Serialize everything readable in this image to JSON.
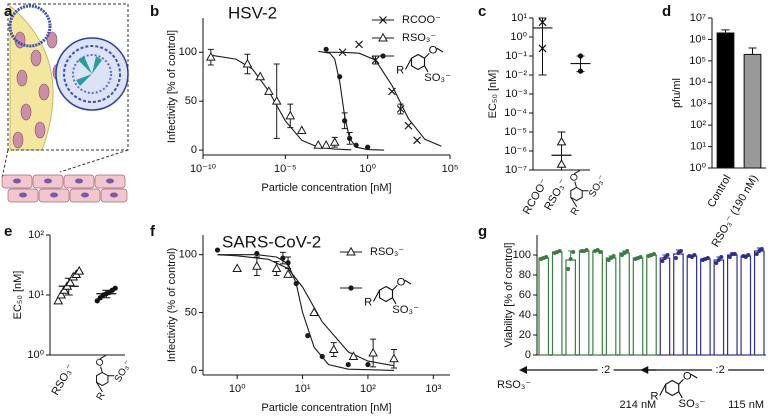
{
  "panel_letters": [
    "a",
    "b",
    "c",
    "d",
    "e",
    "f",
    "g"
  ],
  "structure": {
    "r": "R",
    "o": "O",
    "so3": "SO₃⁻"
  },
  "chart_data": [
    {
      "type": "line",
      "title": "HSV-2",
      "x_label": "Particle concentration [nM]",
      "y_label": "Infectivity [% of control]",
      "x_log": true,
      "xlim": [
        1e-10,
        100000.0
      ],
      "xticks": [
        {
          "value": 1e-10,
          "label": "10⁻¹⁰"
        },
        {
          "value": 1e-05,
          "label": "10⁻⁵"
        },
        {
          "value": 1,
          "label": "10⁰"
        },
        {
          "value": 100000.0,
          "label": "10⁵"
        }
      ],
      "ylim": [
        -5,
        135
      ],
      "yticks": [
        0,
        50,
        100
      ],
      "legend": "upper right",
      "series": [
        {
          "name": "RCOO⁻",
          "marker": "x",
          "color": "#1a1a1a",
          "x": [
            0.03,
            0.3,
            3,
            30,
            100,
            300,
            1000
          ],
          "values": [
            100,
            108,
            92,
            60,
            42,
            25,
            10
          ],
          "errors": [
            null,
            null,
            4,
            null,
            5,
            null,
            null
          ],
          "fit_x": [
            0.003,
            0.03,
            0.3,
            3,
            30,
            300,
            3000,
            30000
          ],
          "fit_values": [
            100,
            100,
            99,
            92,
            66,
            32,
            11,
            4
          ]
        },
        {
          "name": "RSO₃⁻",
          "marker": "triangle",
          "color": "#1a1a1a",
          "x": [
            3e-10,
            5e-08,
            3e-07,
            1e-06,
            3e-06,
            2e-05,
            0.0001,
            0.001,
            0.003,
            0.01
          ],
          "values": [
            95,
            88,
            75,
            60,
            50,
            35,
            20,
            5,
            5,
            8
          ],
          "errors": [
            8,
            10,
            null,
            null,
            38,
            12,
            null,
            null,
            null,
            5
          ],
          "fit_x": [
            3e-10,
            1e-08,
            1e-07,
            1e-06,
            1e-05,
            0.0001,
            0.001,
            0.01,
            0.1
          ],
          "fit_values": [
            97,
            93,
            83,
            60,
            30,
            10,
            3,
            1,
            0.3
          ]
        },
        {
          "marker": "dot",
          "color": "#1a1a1a",
          "x": [
            0.003,
            0.02,
            0.04,
            0.08,
            0.2,
            1
          ],
          "values": [
            103,
            75,
            30,
            12,
            5,
            3
          ],
          "errors": [
            null,
            null,
            8,
            6,
            null,
            null
          ],
          "fit_x": [
            0.001,
            0.005,
            0.01,
            0.02,
            0.04,
            0.08,
            0.2,
            1,
            10
          ],
          "fit_values": [
            101,
            99,
            93,
            70,
            35,
            12,
            3,
            0.5,
            0
          ]
        }
      ]
    },
    {
      "type": "scatter",
      "y_label": "EC₅₀ [nM]",
      "y_log": true,
      "ylim": [
        1e-07,
        10.0
      ],
      "yticks": [
        {
          "value": 1e-07,
          "label": "10⁻⁷"
        },
        {
          "value": 1e-06,
          "label": "10⁻⁶"
        },
        {
          "value": 1e-05,
          "label": "10⁻⁵"
        },
        {
          "value": 0.0001,
          "label": "10⁻⁴"
        },
        {
          "value": 0.001,
          "label": "10⁻³"
        },
        {
          "value": 0.01,
          "label": "10⁻²"
        },
        {
          "value": 0.1,
          "label": "10⁻¹"
        },
        {
          "value": 1,
          "label": "10⁰"
        },
        {
          "value": 10.0,
          "label": "10¹"
        }
      ],
      "categories": [
        "RCOO⁻",
        "RSO₃⁻",
        null
      ],
      "markers": [
        "x",
        "triangle",
        "dot"
      ],
      "points": [
        [
          6,
          0.25
        ],
        [
          3e-06,
          2e-07
        ],
        [
          0.1,
          0.016
        ]
      ],
      "means": [
        3,
        6e-07,
        0.04
      ],
      "ranges": [
        [
          0.01,
          10
        ],
        [
          1e-07,
          1e-05
        ],
        [
          0.015,
          0.1
        ]
      ]
    },
    {
      "type": "bar",
      "y_label": "pfu/ml",
      "y_log": true,
      "ylim": [
        1,
        10000000.0
      ],
      "yticks": [
        {
          "value": 1,
          "label": "10⁰"
        },
        {
          "value": 10.0,
          "label": "10¹"
        },
        {
          "value": 100.0,
          "label": "10²"
        },
        {
          "value": 1000.0,
          "label": "10³"
        },
        {
          "value": 10000.0,
          "label": "10⁴"
        },
        {
          "value": 100000.0,
          "label": "10⁵"
        },
        {
          "value": 1000000.0,
          "label": "10⁶"
        },
        {
          "value": 10000000.0,
          "label": "10⁷"
        }
      ],
      "categories": [
        "Control",
        "RSO₃⁻ (190 nM)"
      ],
      "values": [
        2000000.0,
        200000.0
      ],
      "errors": [
        800000.0,
        200000.0
      ],
      "colors": [
        "#000000",
        "#999999"
      ]
    },
    {
      "type": "scatter",
      "y_label": "EC₅₀ [nM]",
      "y_log": true,
      "ylim": [
        1,
        100
      ],
      "yticks": [
        {
          "value": 1,
          "label": "10⁰"
        },
        {
          "value": 10,
          "label": "10¹"
        },
        {
          "value": 100,
          "label": "10²"
        }
      ],
      "categories": [
        "RSO₃⁻",
        null
      ],
      "markers": [
        "triangle",
        "dot"
      ],
      "points": [
        [
          8,
          10,
          12,
          14,
          16,
          20,
          22,
          25
        ],
        [
          8,
          9,
          10,
          10.5,
          11,
          12,
          13
        ]
      ],
      "means": [
        14,
        10.5
      ],
      "ranges": [
        [
          10,
          19
        ],
        [
          9,
          12
        ]
      ]
    },
    {
      "type": "line",
      "title": "SARS-CoV-2",
      "x_label": "Particle concentration [nM]",
      "y_label": "Infectivity (% of control)",
      "x_log": true,
      "xlim": [
        0.3,
        1800
      ],
      "xticks": [
        {
          "value": 1,
          "label": "10⁰"
        },
        {
          "value": 10,
          "label": "10¹"
        },
        {
          "value": 100,
          "label": "10²"
        },
        {
          "value": 1000,
          "label": "10³"
        }
      ],
      "ylim": [
        -4,
        117
      ],
      "yticks": [
        0,
        50,
        100
      ],
      "legend": "upper right",
      "series": [
        {
          "name": "RSO₃⁻",
          "marker": "triangle",
          "color": "#1a1a1a",
          "x": [
            1,
            2,
            4,
            6,
            15,
            30,
            60,
            120,
            250
          ],
          "values": [
            88,
            90,
            88,
            83,
            50,
            18,
            12,
            15,
            10
          ],
          "errors": [
            null,
            8,
            6,
            null,
            null,
            6,
            null,
            12,
            8
          ],
          "fit_x": [
            0.5,
            1,
            3,
            6,
            10,
            20,
            50,
            100,
            250
          ],
          "fit_values": [
            100,
            99,
            96,
            88,
            72,
            42,
            16,
            8,
            4
          ]
        },
        {
          "marker": "dot",
          "color": "#1a1a1a",
          "x": [
            0.5,
            2,
            5,
            6,
            8,
            12,
            20,
            50,
            100
          ],
          "values": [
            104,
            101,
            97,
            93,
            75,
            30,
            12,
            5,
            5
          ],
          "errors": [
            null,
            null,
            5,
            5,
            null,
            null,
            null,
            null,
            null
          ],
          "fit_x": [
            0.5,
            2,
            4,
            6,
            8,
            10,
            15,
            25,
            50,
            250
          ],
          "fit_values": [
            100,
            100,
            98,
            92,
            75,
            50,
            20,
            5,
            1,
            0
          ]
        }
      ]
    },
    {
      "type": "bar",
      "y_label": "Viability [% of control]",
      "ylim": [
        0,
        120
      ],
      "yticks": [
        0,
        20,
        40,
        60,
        80,
        100
      ],
      "series": [
        {
          "name": "RSO₃⁻",
          "color": "#3a7d44",
          "dilution": ":2",
          "top_concentration": "214 nM",
          "values": [
            97,
            103,
            95,
            104,
            104,
            97,
            102,
            97,
            100
          ],
          "errors": [
            1,
            1,
            9,
            1,
            1,
            2,
            2,
            1,
            1
          ],
          "points": [
            [
              96,
              97,
              98
            ],
            [
              102,
              103,
              104
            ],
            [
              86,
              96,
              103
            ],
            [
              104,
              104,
              105
            ],
            [
              104,
              105,
              103
            ],
            [
              95,
              97,
              99
            ],
            [
              100,
              102,
              104
            ],
            [
              96,
              97,
              98
            ],
            [
              99,
              100,
              101
            ]
          ]
        },
        {
          "color": "#2b2f8f",
          "dilution": ":2",
          "top_concentration": "115 nM",
          "values": [
            97,
            101,
            99,
            96,
            95,
            100,
            99,
            104
          ],
          "errors": [
            3,
            4,
            1,
            1,
            3,
            2,
            1,
            3
          ],
          "points": [
            [
              94,
              97,
              100
            ],
            [
              97,
              102,
              104
            ],
            [
              99,
              98,
              100
            ],
            [
              95,
              96,
              97
            ],
            [
              92,
              95,
              98
            ],
            [
              98,
              101,
              101
            ],
            [
              99,
              98,
              100
            ],
            [
              101,
              104,
              106
            ]
          ]
        }
      ]
    }
  ]
}
